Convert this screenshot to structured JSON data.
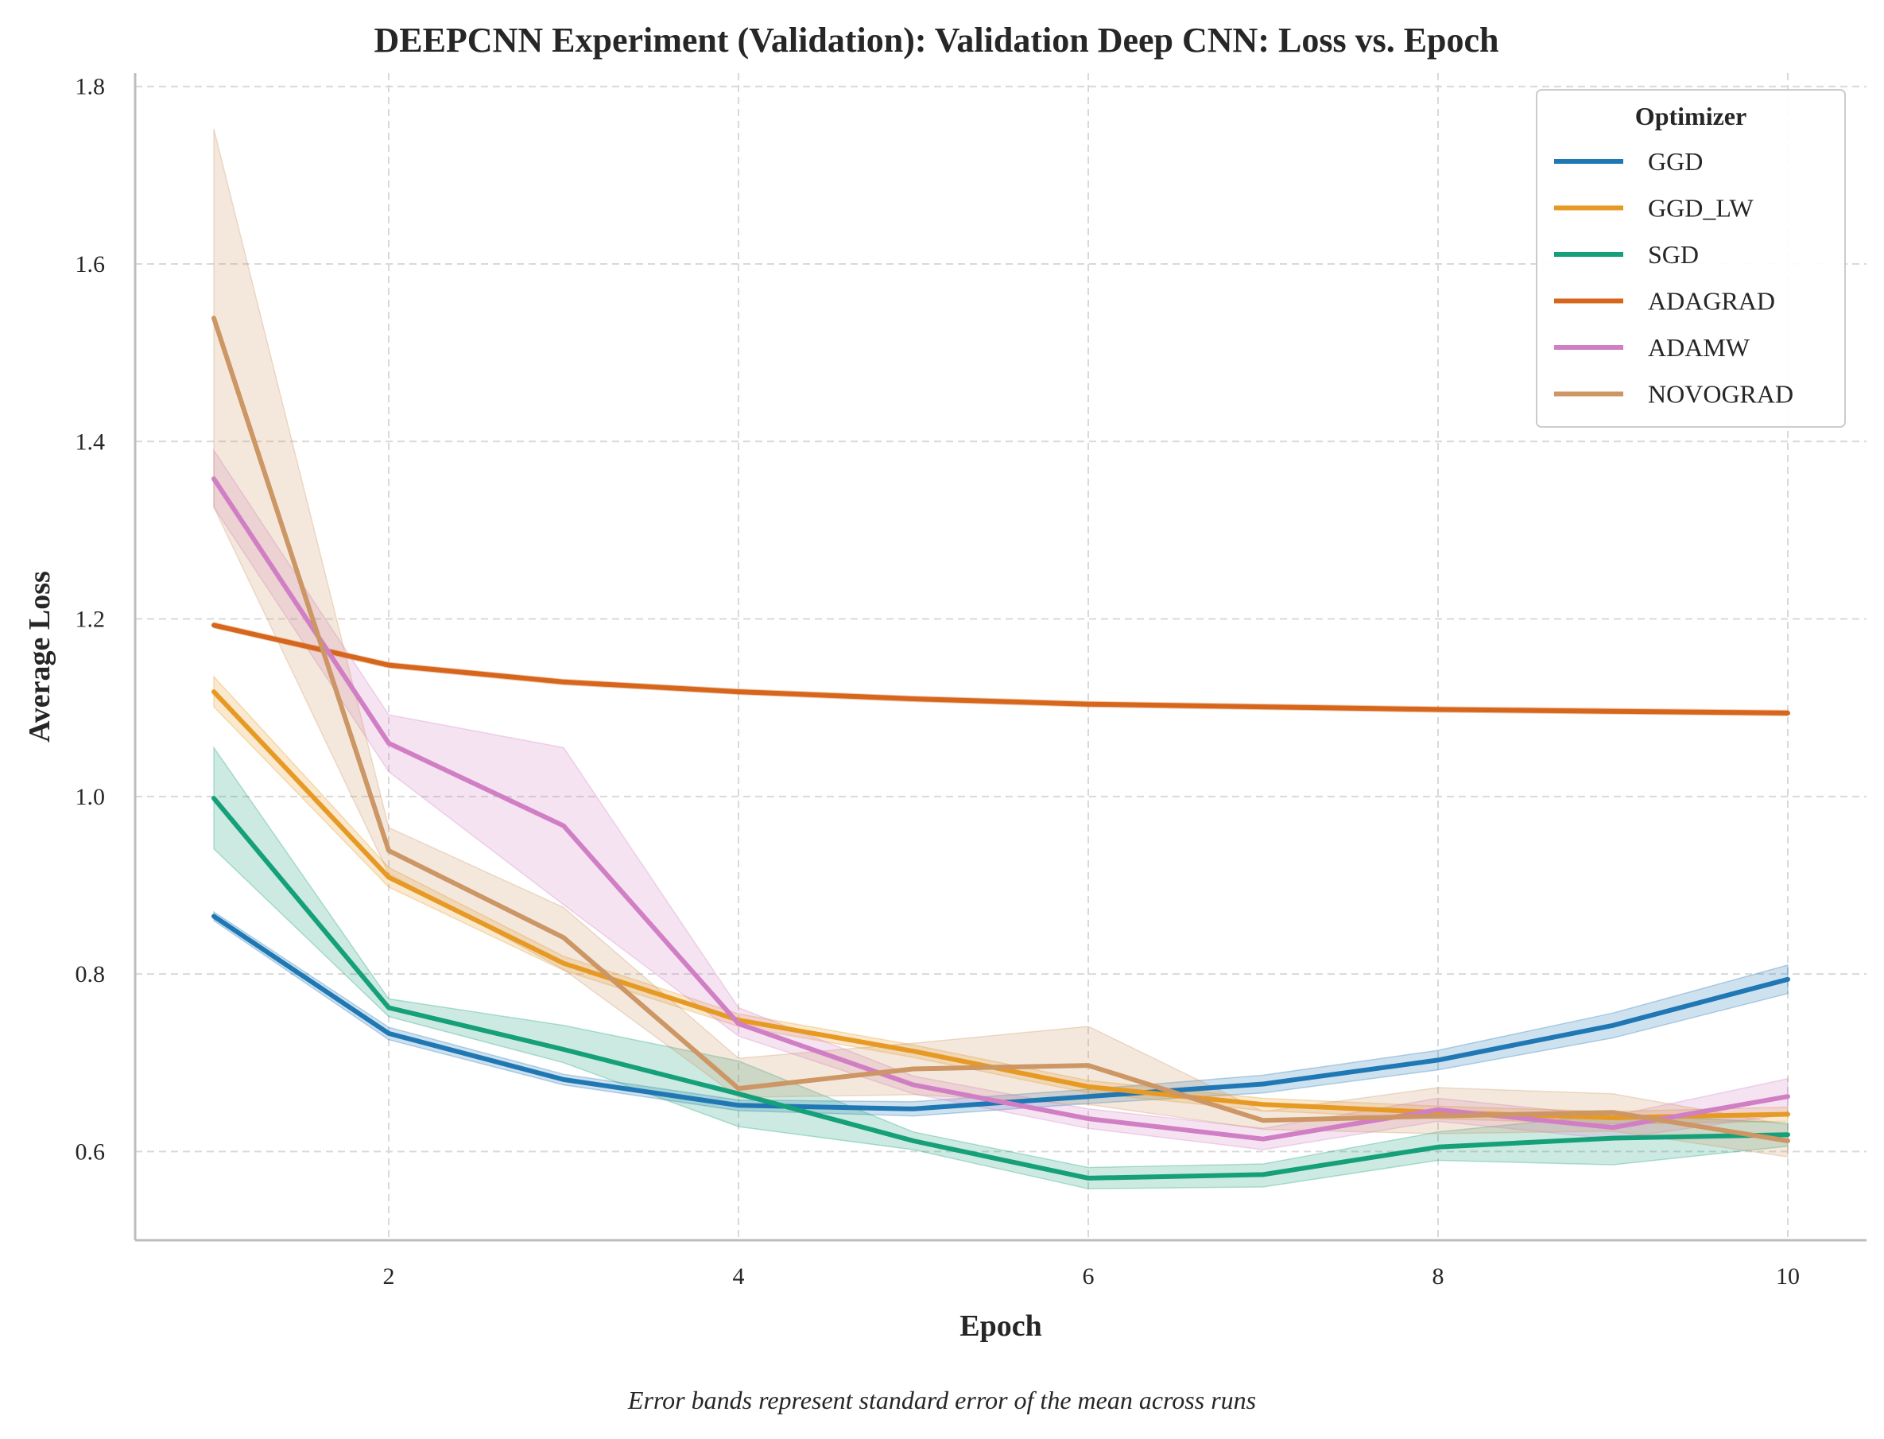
{
  "chart_data": {
    "type": "line",
    "title": "DEEPCNN Experiment (Validation): Validation Deep CNN: Loss vs. Epoch",
    "xlabel": "Epoch",
    "ylabel": "Average Loss",
    "caption": "Error bands represent standard error of the mean across runs",
    "xlim": [
      0.55,
      10.45
    ],
    "ylim": [
      0.5,
      1.815
    ],
    "xticks": [
      2,
      4,
      6,
      8,
      10
    ],
    "yticks": [
      0.6,
      0.8,
      1.0,
      1.2,
      1.4,
      1.6,
      1.8
    ],
    "xtick_labels": [
      "2",
      "4",
      "6",
      "8",
      "10"
    ],
    "ytick_labels": [
      "0.6",
      "0.8",
      "1.0",
      "1.2",
      "1.4",
      "1.6",
      "1.8"
    ],
    "grid": true,
    "legend": {
      "title": "Optimizer",
      "position": "top-right"
    },
    "x": [
      1,
      2,
      3,
      4,
      5,
      6,
      7,
      8,
      9,
      10
    ],
    "series": [
      {
        "name": "GGD",
        "color": "#1f77b4",
        "values": [
          0.865,
          0.733,
          0.681,
          0.652,
          0.648,
          0.662,
          0.676,
          0.703,
          0.742,
          0.794
        ],
        "upper": [
          0.87,
          0.74,
          0.687,
          0.658,
          0.656,
          0.67,
          0.686,
          0.714,
          0.756,
          0.81
        ],
        "lower": [
          0.86,
          0.726,
          0.675,
          0.646,
          0.64,
          0.654,
          0.666,
          0.692,
          0.728,
          0.778
        ]
      },
      {
        "name": "GGD_LW",
        "color": "#e69a24",
        "values": [
          1.118,
          0.909,
          0.812,
          0.748,
          0.713,
          0.673,
          0.653,
          0.644,
          0.638,
          0.642
        ],
        "upper": [
          1.135,
          0.92,
          0.82,
          0.755,
          0.72,
          0.68,
          0.66,
          0.651,
          0.645,
          0.65
        ],
        "lower": [
          1.101,
          0.898,
          0.804,
          0.741,
          0.706,
          0.666,
          0.646,
          0.637,
          0.631,
          0.634
        ]
      },
      {
        "name": "SGD",
        "color": "#16a07a",
        "values": [
          0.998,
          0.762,
          0.715,
          0.665,
          0.612,
          0.57,
          0.574,
          0.605,
          0.615,
          0.619
        ],
        "upper": [
          1.055,
          0.772,
          0.742,
          0.702,
          0.622,
          0.582,
          0.586,
          0.622,
          0.642,
          0.632
        ],
        "lower": [
          0.941,
          0.752,
          0.7,
          0.628,
          0.602,
          0.558,
          0.56,
          0.59,
          0.585,
          0.606
        ]
      },
      {
        "name": "ADAGRAD",
        "color": "#d6661c",
        "values": [
          1.193,
          1.148,
          1.129,
          1.118,
          1.11,
          1.104,
          1.101,
          1.098,
          1.096,
          1.094
        ],
        "upper": [
          1.196,
          1.151,
          1.132,
          1.121,
          1.113,
          1.107,
          1.104,
          1.101,
          1.099,
          1.097
        ],
        "lower": [
          1.19,
          1.145,
          1.126,
          1.115,
          1.107,
          1.101,
          1.098,
          1.095,
          1.093,
          1.091
        ]
      },
      {
        "name": "ADAMW",
        "color": "#d17fc4",
        "values": [
          1.358,
          1.06,
          0.967,
          0.744,
          0.675,
          0.637,
          0.614,
          0.647,
          0.627,
          0.662
        ],
        "upper": [
          1.39,
          1.092,
          1.055,
          0.762,
          0.685,
          0.648,
          0.626,
          0.66,
          0.64,
          0.682
        ],
        "lower": [
          1.326,
          1.028,
          0.878,
          0.73,
          0.665,
          0.626,
          0.602,
          0.634,
          0.614,
          0.642
        ]
      },
      {
        "name": "NOVOGRAD",
        "color": "#cc9665",
        "values": [
          1.539,
          0.939,
          0.841,
          0.671,
          0.693,
          0.697,
          0.635,
          0.64,
          0.644,
          0.612
        ],
        "upper": [
          1.752,
          0.965,
          0.875,
          0.705,
          0.722,
          0.741,
          0.645,
          0.672,
          0.665,
          0.63
        ],
        "lower": [
          1.326,
          0.913,
          0.805,
          0.661,
          0.664,
          0.653,
          0.625,
          0.62,
          0.623,
          0.594
        ]
      }
    ]
  }
}
